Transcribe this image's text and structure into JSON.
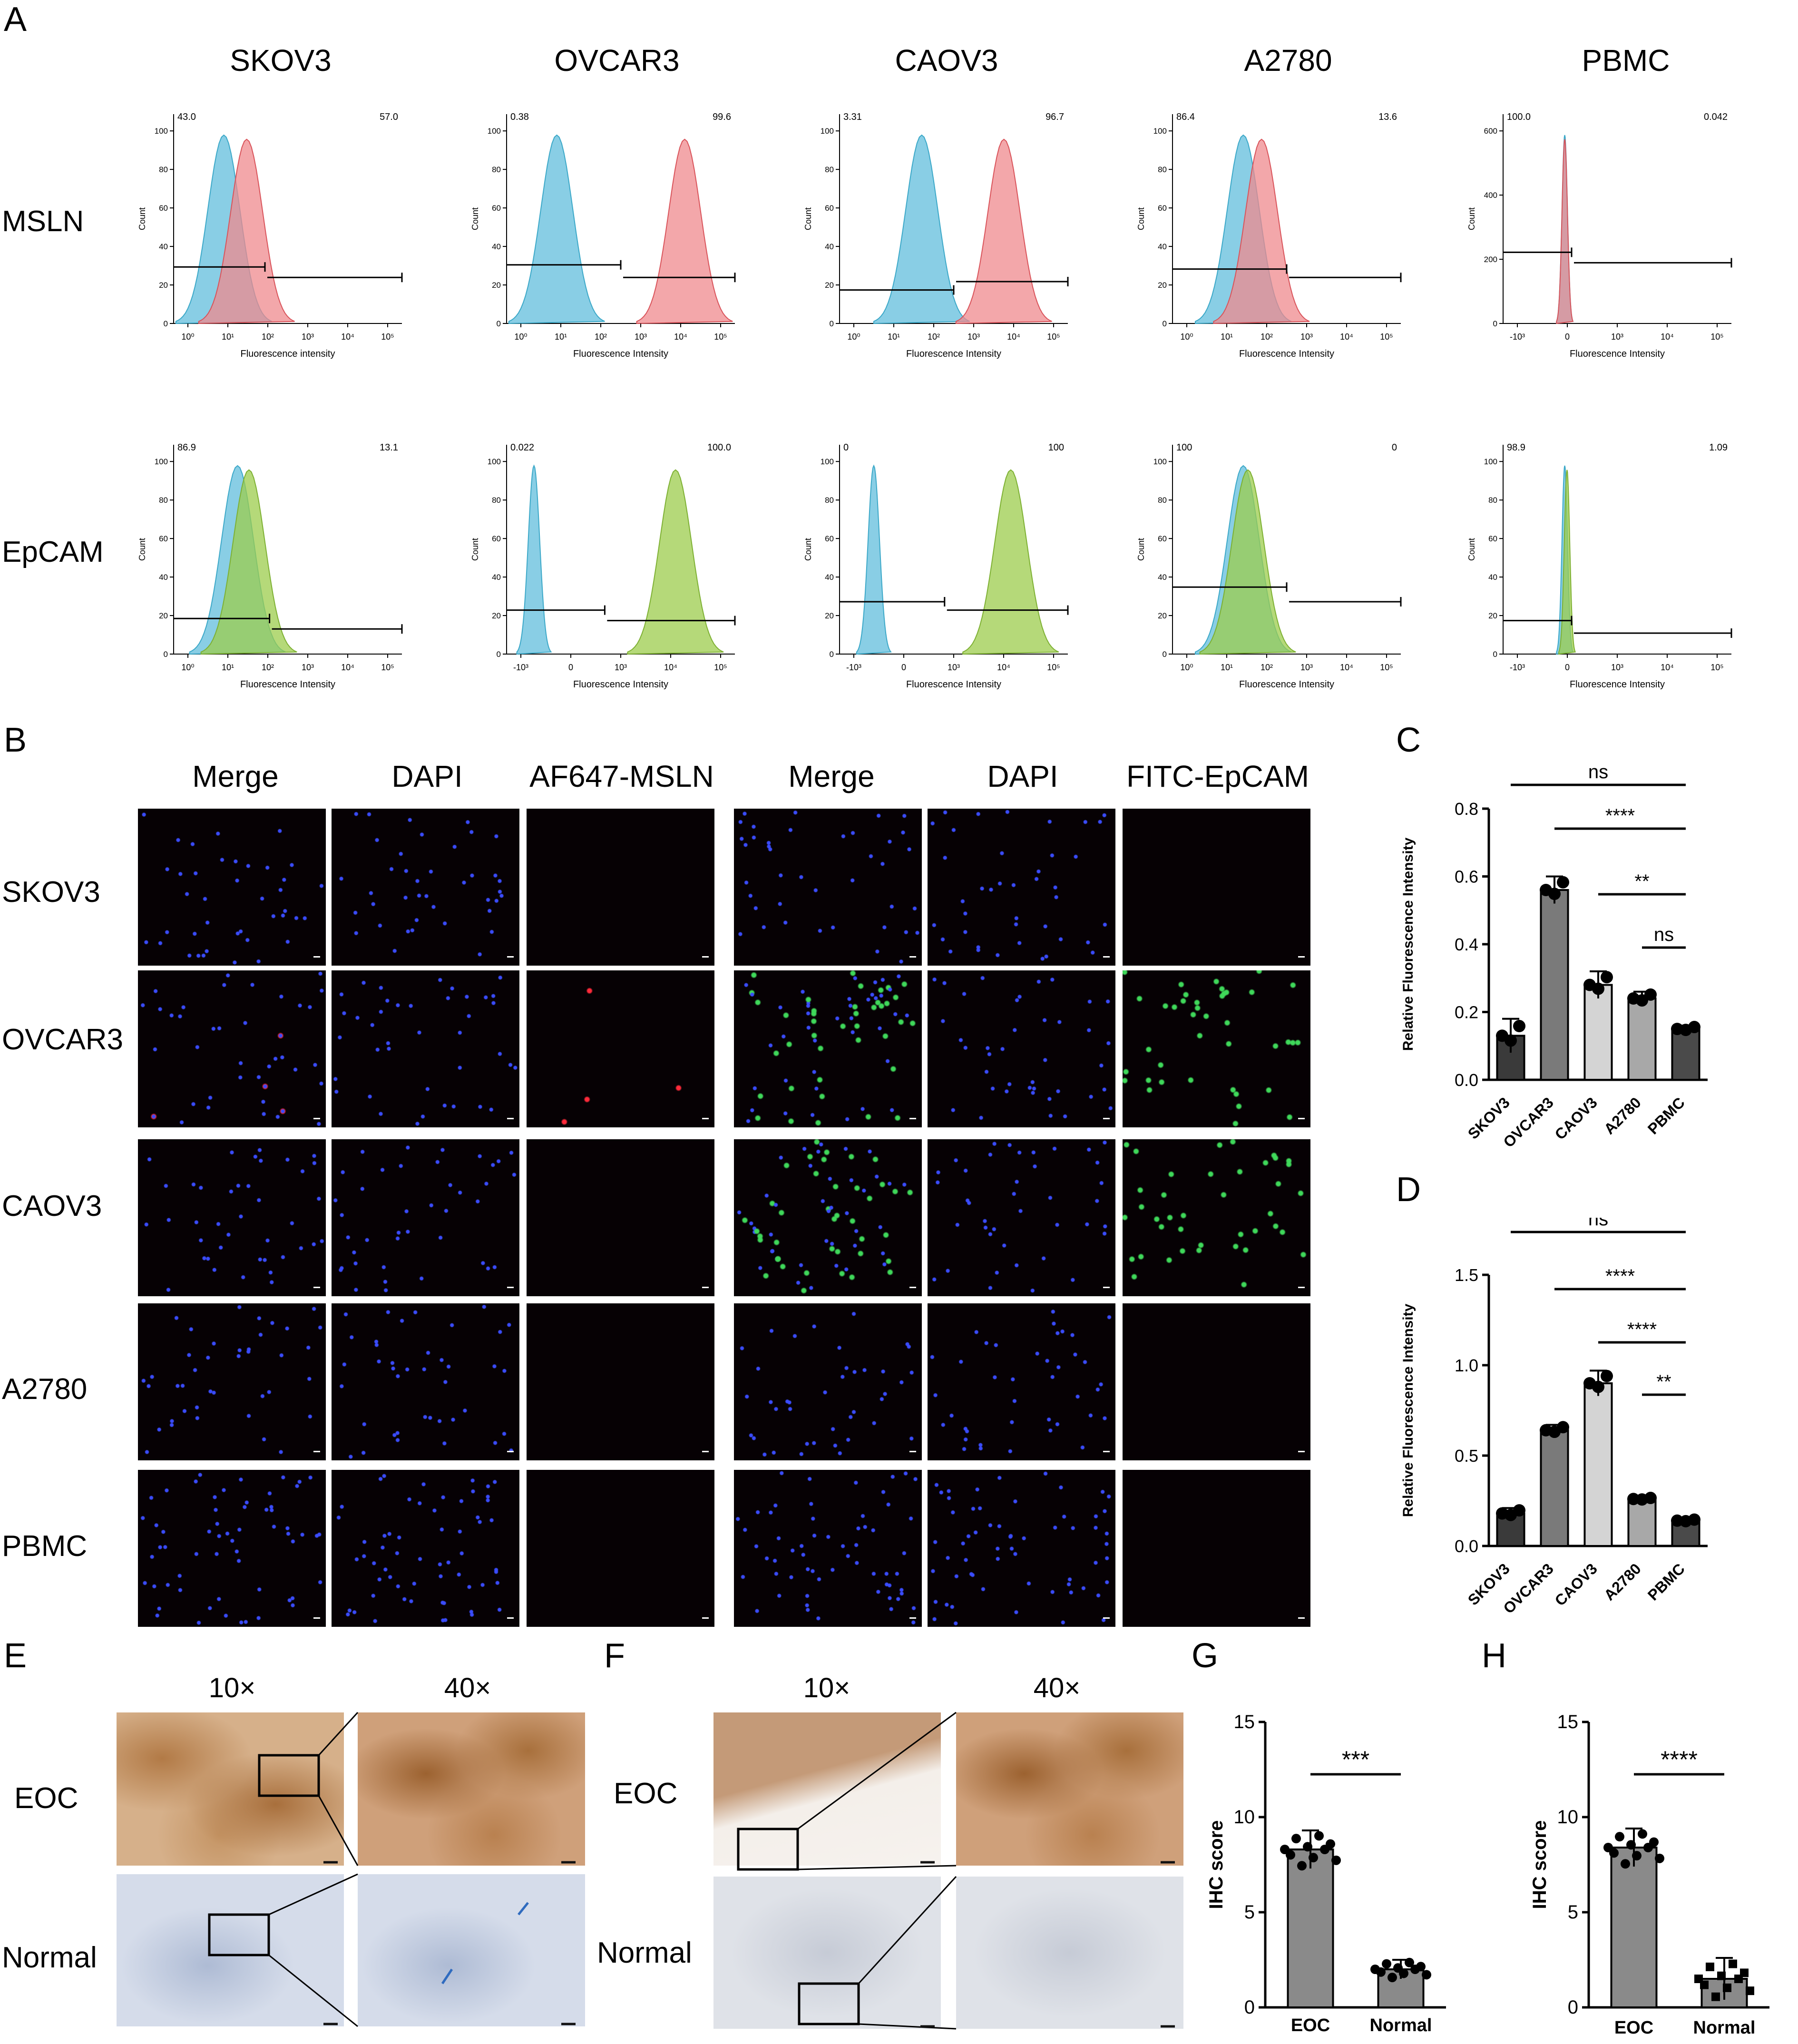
{
  "panels": {
    "A": "A",
    "B": "B",
    "C": "C",
    "D": "D",
    "E": "E",
    "F": "F",
    "G": "G",
    "H": "H"
  },
  "flow": {
    "columns": [
      "SKOV3",
      "OVCAR3",
      "CAOV3",
      "A2780",
      "PBMC"
    ],
    "rows": [
      "MSLN",
      "EpCAM"
    ],
    "xlabel": "Fluorescence intensity",
    "xlabel_alt": "Fluorescence Intensity",
    "ylabel": "Count",
    "gates": {
      "MSLN": [
        [
          "43.0",
          "57.0"
        ],
        [
          "0.38",
          "99.6"
        ],
        [
          "3.31",
          "96.7"
        ],
        [
          "86.4",
          "13.6"
        ],
        [
          "100.0",
          "0.042"
        ]
      ],
      "EpCAM": [
        [
          "86.9",
          "13.1"
        ],
        [
          "0.022",
          "100.0"
        ],
        [
          "0",
          "100"
        ],
        [
          "100",
          "0"
        ],
        [
          "98.9",
          "1.09"
        ]
      ]
    },
    "yticks_default": [
      "0",
      "20",
      "40",
      "60",
      "80",
      "100"
    ],
    "yticks_pbmc_msln": [
      "0",
      "200",
      "400",
      "600"
    ],
    "xticks_log": [
      "10⁰",
      "10¹",
      "10²",
      "10³",
      "10⁴",
      "10⁵"
    ],
    "xticks_bilog": [
      "-10³",
      "0",
      "10³",
      "10⁴",
      "10⁵"
    ],
    "colors": {
      "control": "#74c6e0",
      "msln": "#ef8a8e",
      "epcam": "#9ccc4c"
    }
  },
  "ifa": {
    "headers_left": [
      "Merge",
      "DAPI",
      "AF647-MSLN"
    ],
    "headers_right": [
      "Merge",
      "DAPI",
      "FITC-EpCAM"
    ],
    "rows": [
      "SKOV3",
      "OVCAR3",
      "CAOV3",
      "A2780",
      "PBMC"
    ]
  },
  "chart_data": [
    {
      "panel": "C",
      "type": "bar",
      "categories": [
        "SKOV3",
        "OVCAR3",
        "CAOV3",
        "A2780",
        "PBMC"
      ],
      "values": [
        0.13,
        0.56,
        0.28,
        0.24,
        0.15
      ],
      "errors": [
        0.05,
        0.04,
        0.04,
        0.02,
        0.01
      ],
      "ylabel": "Relative Fluorescence Intensity",
      "ylim": [
        0,
        0.8
      ],
      "yticks": [
        "0.0",
        "0.2",
        "0.4",
        "0.6",
        "0.8"
      ],
      "bar_colors": [
        "#3a3a3a",
        "#7a7a7a",
        "#d4d4d4",
        "#a8a8a8",
        "#4a4a4a"
      ],
      "significance": [
        {
          "from": "SKOV3",
          "to": "PBMC",
          "label": "ns"
        },
        {
          "from": "OVCAR3",
          "to": "PBMC",
          "label": "****"
        },
        {
          "from": "CAOV3",
          "to": "PBMC",
          "label": "**"
        },
        {
          "from": "A2780",
          "to": "PBMC",
          "label": "ns"
        }
      ]
    },
    {
      "panel": "D",
      "type": "bar",
      "categories": [
        "SKOV3",
        "OVCAR3",
        "CAOV3",
        "A2780",
        "PBMC"
      ],
      "values": [
        0.18,
        0.64,
        0.9,
        0.26,
        0.14
      ],
      "errors": [
        0.03,
        0.03,
        0.07,
        0.01,
        0.01
      ],
      "ylabel": "Relative Fluorescence Intensity",
      "ylim": [
        0,
        1.5
      ],
      "yticks": [
        "0.0",
        "0.5",
        "1.0",
        "1.5"
      ],
      "bar_colors": [
        "#3a3a3a",
        "#7a7a7a",
        "#d4d4d4",
        "#a8a8a8",
        "#4a4a4a"
      ],
      "significance": [
        {
          "from": "SKOV3",
          "to": "PBMC",
          "label": "ns"
        },
        {
          "from": "OVCAR3",
          "to": "PBMC",
          "label": "****"
        },
        {
          "from": "CAOV3",
          "to": "PBMC",
          "label": "****"
        },
        {
          "from": "A2780",
          "to": "PBMC",
          "label": "**"
        }
      ]
    },
    {
      "panel": "G",
      "type": "bar",
      "categories": [
        "EOC",
        "Normal"
      ],
      "values": [
        8.3,
        2.0
      ],
      "errors": [
        1.0,
        0.5
      ],
      "ylabel": "IHC score",
      "ylim": [
        0,
        15
      ],
      "yticks": [
        "0",
        "5",
        "10",
        "15"
      ],
      "bar_colors": [
        "#8a8a8a",
        "#8a8a8a"
      ],
      "significance": [
        {
          "from": "EOC",
          "to": "Normal",
          "label": "***"
        }
      ]
    },
    {
      "panel": "H",
      "type": "bar",
      "categories": [
        "EOC",
        "Normal"
      ],
      "values": [
        8.4,
        1.5
      ],
      "errors": [
        1.0,
        1.1
      ],
      "ylabel": "IHC score",
      "ylim": [
        0,
        15
      ],
      "yticks": [
        "0",
        "5",
        "10",
        "15"
      ],
      "bar_colors": [
        "#8a8a8a",
        "#8a8a8a"
      ],
      "significance": [
        {
          "from": "EOC",
          "to": "Normal",
          "label": "****"
        }
      ]
    }
  ],
  "ihc": {
    "E": {
      "mag_left": "10×",
      "mag_right": "40×",
      "row_top": "EOC",
      "row_bottom": "Normal"
    },
    "F": {
      "mag_left": "10×",
      "mag_right": "40×",
      "row_top": "EOC",
      "row_bottom": "Normal"
    }
  }
}
